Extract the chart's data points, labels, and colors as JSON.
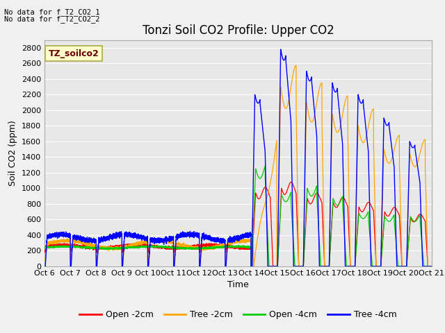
{
  "title": "Tonzi Soil CO2 Profile: Upper CO2",
  "ylabel": "Soil CO2 (ppm)",
  "xlabel": "Time",
  "ylim": [
    0,
    2900
  ],
  "xtick_labels": [
    "Oct 6",
    "Oct 7",
    "Oct 8",
    "Oct 9",
    "Oct 10",
    "Oct 11",
    "Oct 12",
    "Oct 13",
    "Oct 14",
    "Oct 15",
    "Oct 16",
    "Oct 17",
    "Oct 18",
    "Oct 19",
    "Oct 20",
    "Oct 21"
  ],
  "no_data_texts": [
    "No data for f_T2_CO2_1",
    "No data for f_T2_CO2_2"
  ],
  "legend_label_text": "TZ_soilco2",
  "legend_entries": [
    "Open -2cm",
    "Tree -2cm",
    "Open -4cm",
    "Tree -4cm"
  ],
  "legend_colors": [
    "#ff0000",
    "#ffaa00",
    "#00cc00",
    "#0000ff"
  ],
  "plot_bg": "#e8e8e8",
  "fig_bg": "#f0f0f0",
  "grid_color": "#ffffff",
  "title_fontsize": 12,
  "tick_fontsize": 8,
  "axis_fontsize": 9,
  "blue_color": "#0000ff",
  "orange_color": "#ffa500",
  "red_color": "#ff0000",
  "green_color": "#00cc00"
}
